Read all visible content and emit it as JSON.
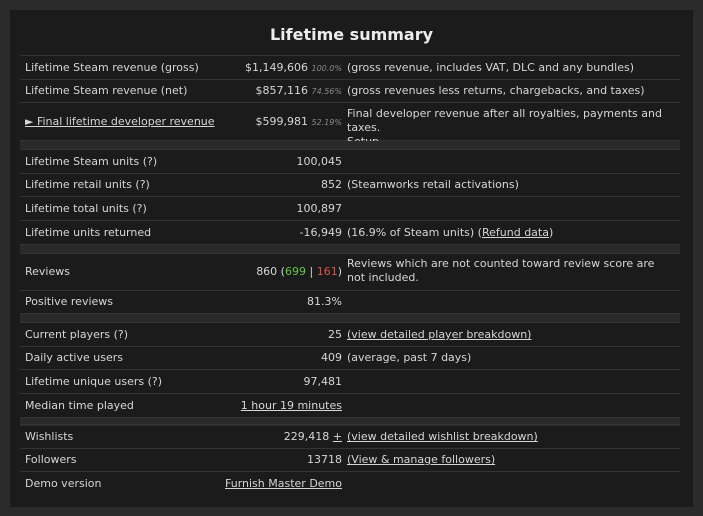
{
  "title": "Lifetime summary",
  "revenue": {
    "gross": {
      "label": "Lifetime Steam revenue (gross)",
      "value": "$1,149,606",
      "pct": "100.0%",
      "note": "(gross revenue, includes VAT, DLC and any bundles)"
    },
    "net": {
      "label": "Lifetime Steam revenue (net)",
      "value": "$857,116",
      "pct": "74.56%",
      "note": "(gross revenues less returns, chargebacks, and taxes)"
    },
    "dev": {
      "label": "► Final lifetime developer revenue",
      "value": "$599,981",
      "pct": "52.19%",
      "note": "Final developer revenue after all royalties, payments and taxes.",
      "link": "Setup"
    }
  },
  "units": {
    "steam": {
      "label": "Lifetime Steam units (?)",
      "value": "100,045"
    },
    "retail": {
      "label": "Lifetime retail units (?)",
      "value": "852",
      "note": "(Steamworks retail activations)"
    },
    "total": {
      "label": "Lifetime total units (?)",
      "value": "100,897"
    },
    "returned": {
      "label": "Lifetime units returned",
      "value": "-16,949",
      "note_pre": "(16.9% of Steam units) (",
      "link": "Refund data",
      "note_post": ")"
    }
  },
  "reviews": {
    "label": "Reviews",
    "total": "860",
    "positive": "699",
    "separator": "|",
    "negative": "161",
    "note": "Reviews which are not counted toward review score are not included.",
    "positive_label": "Positive reviews",
    "positive_pct": "81.3%"
  },
  "players": {
    "current": {
      "label": "Current players (?)",
      "value": "25",
      "link": "(view detailed player breakdown)"
    },
    "dau": {
      "label": "Daily active users",
      "value": "409",
      "note": "(average, past 7 days)"
    },
    "unique": {
      "label": "Lifetime unique users (?)",
      "value": "97,481"
    },
    "median": {
      "label": "Median time played",
      "value": "1 hour 19 minutes"
    }
  },
  "community": {
    "wishlists": {
      "label": "Wishlists",
      "value": "229,418",
      "plus": "+",
      "link": "(view detailed wishlist breakdown)"
    },
    "followers": {
      "label": "Followers",
      "value": "13718",
      "link": "(View & manage followers)"
    },
    "demo": {
      "label": "Demo version",
      "value": "Furnish Master Demo"
    }
  }
}
